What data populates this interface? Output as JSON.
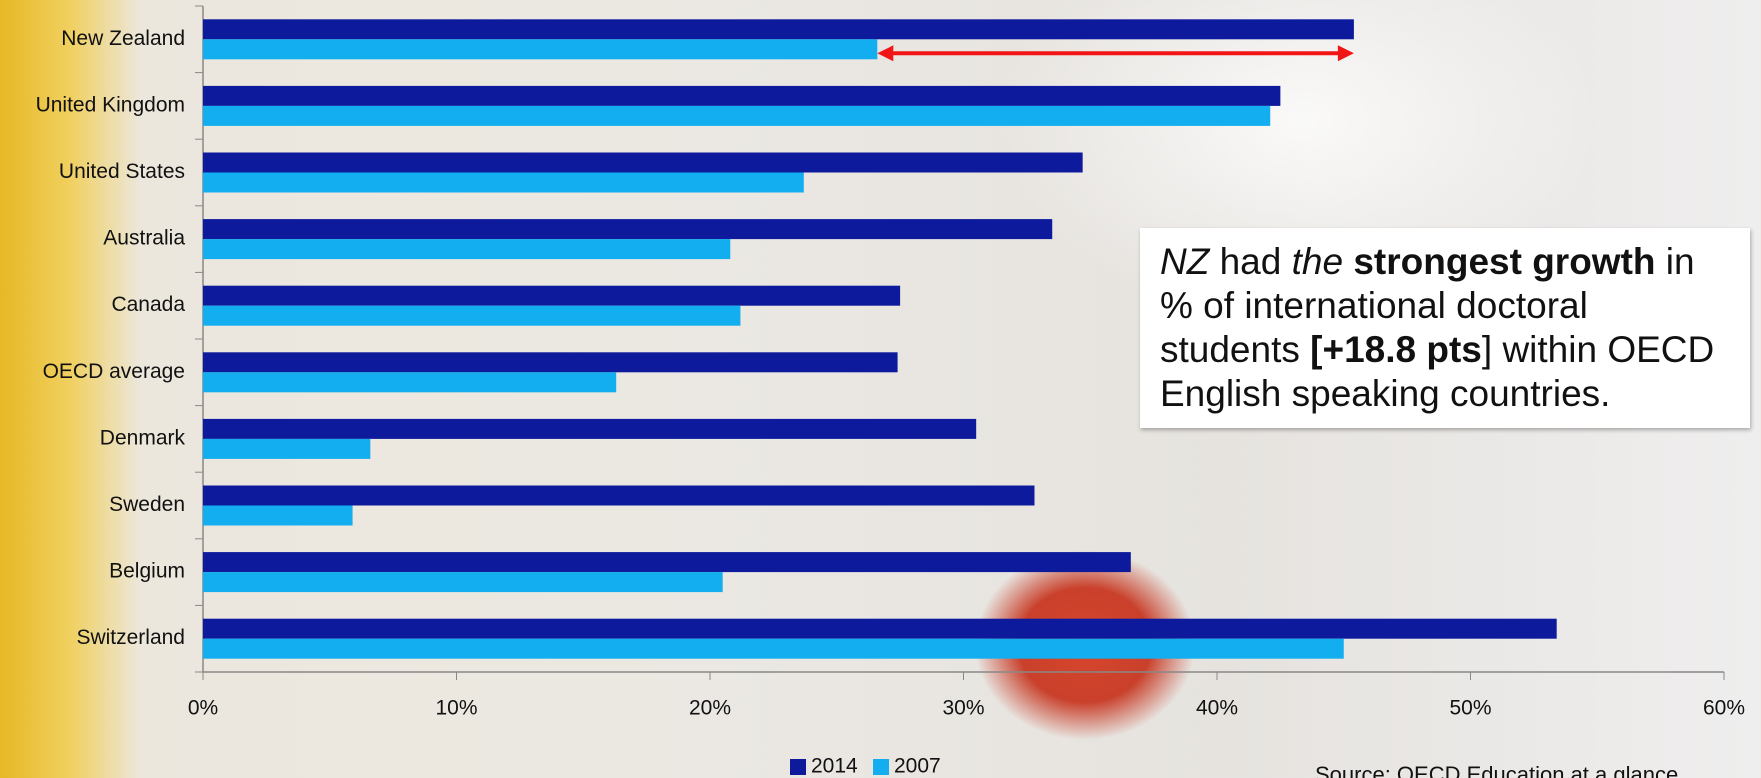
{
  "chart_data": {
    "type": "bar",
    "orientation": "horizontal",
    "categories": [
      "New Zealand",
      "United Kingdom",
      "United States",
      "Australia",
      "Canada",
      "OECD average",
      "Denmark",
      "Sweden",
      "Belgium",
      "Switzerland"
    ],
    "series": [
      {
        "name": "2014",
        "color": "#0d1a9c",
        "values": [
          45.4,
          42.5,
          34.7,
          33.5,
          27.5,
          27.4,
          30.5,
          32.8,
          36.6,
          53.4
        ]
      },
      {
        "name": "2007",
        "color": "#12aeef",
        "values": [
          26.6,
          42.1,
          23.7,
          20.8,
          21.2,
          16.3,
          6.6,
          5.9,
          20.5,
          45.0
        ]
      }
    ],
    "xlim": [
      0,
      60
    ],
    "xticks": [
      {
        "value": 0,
        "label": "0%"
      },
      {
        "value": 10,
        "label": "10%"
      },
      {
        "value": 20,
        "label": "20%"
      },
      {
        "value": 30,
        "label": "30%"
      },
      {
        "value": 40,
        "label": "40%"
      },
      {
        "value": 50,
        "label": "50%"
      },
      {
        "value": 60,
        "label": "60%"
      }
    ],
    "legend": "bottom",
    "annotation": {
      "parts": [
        "NZ",
        " had ",
        "the",
        " ",
        "strongest growth",
        " in % of international doctoral students ",
        "[+18.8 pts",
        "] within OECD English speaking countries."
      ]
    },
    "source": "Source: OECD Education at a glance"
  }
}
